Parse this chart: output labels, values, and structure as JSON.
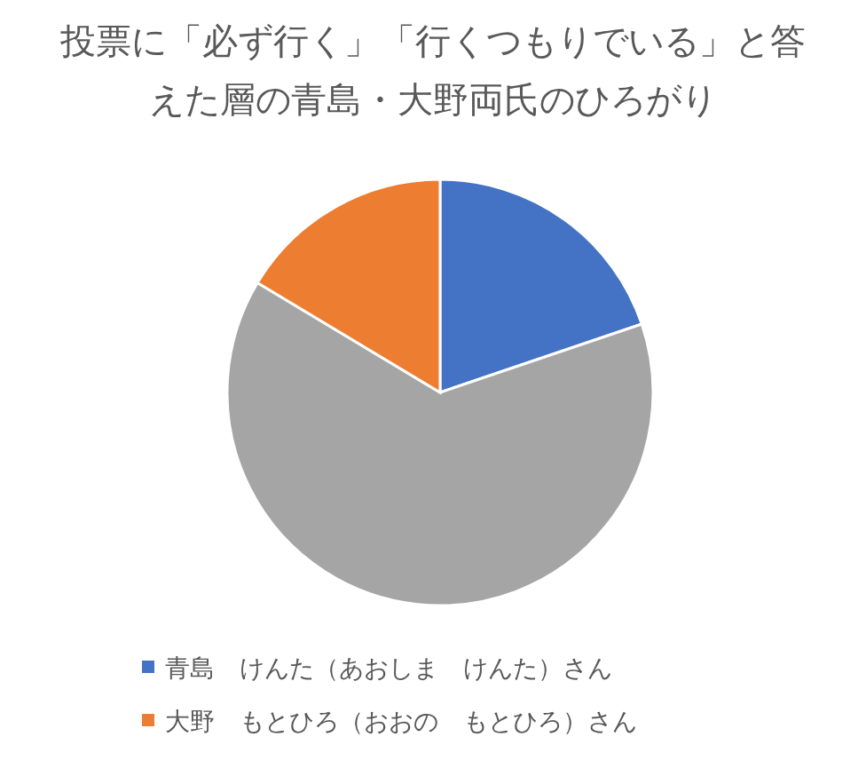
{
  "chart_data": {
    "type": "pie",
    "title": "投票に「必ず行く」「行くつもりでいる」と答えた層の青島・大野両氏のひろがり",
    "categories": [
      "青島　けんた（あおしま　けんた）さん",
      null,
      "大野　もとひろ（おおの　もとひろ）さん"
    ],
    "values": [
      19.8,
      63.8,
      16.4
    ],
    "colors": [
      "#4472c4",
      "#a5a5a5",
      "#ed7d31"
    ],
    "legend": "bottom"
  }
}
